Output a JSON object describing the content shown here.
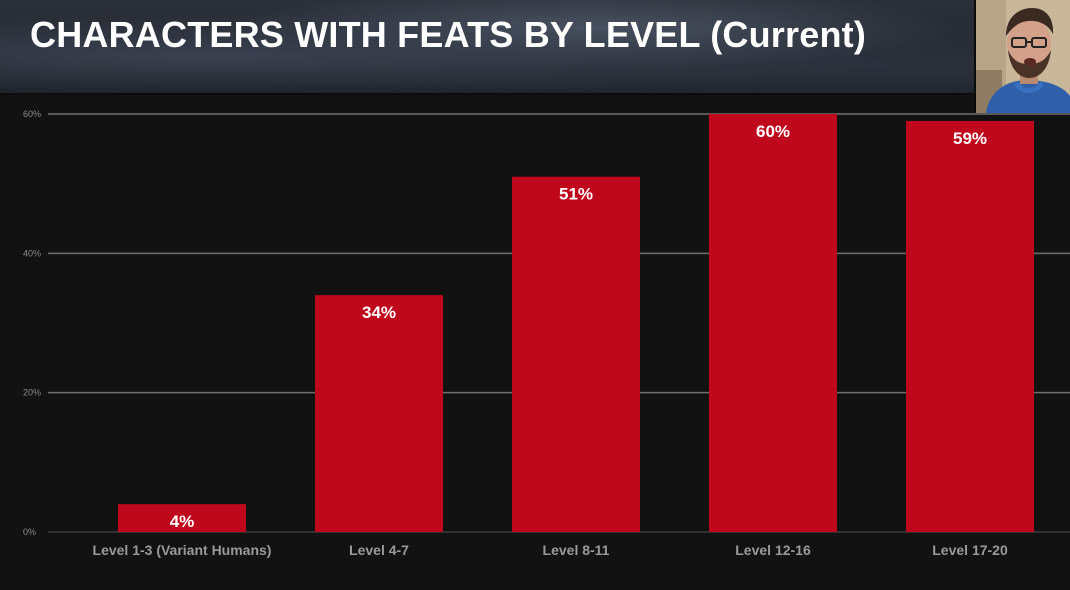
{
  "title": "CHARACTERS WITH FEATS BY LEVEL (Current)",
  "colors": {
    "bar": "#c0081c",
    "grid": "#7a7a7a",
    "tick_text": "#8a8a8a",
    "category_text": "#9a9a9a",
    "value_text": "#ffffff",
    "background": "#121212"
  },
  "webcam": {
    "icon": "presenter-webcam-icon"
  },
  "chart_data": {
    "type": "bar",
    "categories": [
      "Level 1-3 (Variant Humans)",
      "Level 4-7",
      "Level 8-11",
      "Level 12-16",
      "Level 17-20"
    ],
    "values": [
      4,
      34,
      51,
      60,
      59
    ],
    "data_labels": [
      "4%",
      "34%",
      "51%",
      "60%",
      "59%"
    ],
    "yticks": [
      0,
      20,
      40,
      60
    ],
    "ytick_labels": [
      "0%",
      "20%",
      "40%",
      "60%"
    ],
    "ylim": [
      0,
      60
    ],
    "grid": true,
    "legend": "none",
    "title": "CHARACTERS WITH FEATS BY LEVEL (Current)",
    "xlabel": "",
    "ylabel": ""
  }
}
